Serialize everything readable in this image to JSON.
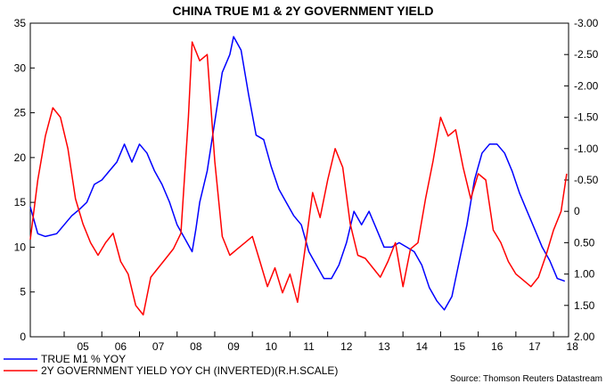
{
  "chart_data": {
    "type": "line",
    "title": "CHINA TRUE M1 & 2Y GOVERNMENT YIELD",
    "source": "Source: Thomson Reuters Datastream",
    "x_ticks": [
      "05",
      "06",
      "07",
      "08",
      "09",
      "10",
      "11",
      "12",
      "13",
      "14",
      "15",
      "16",
      "17",
      "18"
    ],
    "xlim": [
      2004.1,
      2018.4
    ],
    "left_axis": {
      "ylim": [
        0,
        35
      ],
      "ticks": [
        "0",
        "5",
        "10",
        "15",
        "20",
        "25",
        "30",
        "35"
      ]
    },
    "right_axis": {
      "ylim": [
        2.0,
        -3.0
      ],
      "inverted": true,
      "ticks": [
        "2.00",
        "1.50",
        "1.00",
        "0.50",
        "0",
        "-0.50",
        "-1.00",
        "-1.50",
        "-2.00",
        "-2.50",
        "-3.00"
      ]
    },
    "grid": false,
    "legend_position": "bottom-left",
    "series": [
      {
        "name": "TRUE M1 % YOY",
        "color": "#0000ff",
        "axis": "left",
        "x": [
          2004.1,
          2004.3,
          2004.5,
          2004.8,
          2005.0,
          2005.2,
          2005.4,
          2005.6,
          2005.8,
          2006.0,
          2006.2,
          2006.4,
          2006.6,
          2006.8,
          2007.0,
          2007.2,
          2007.4,
          2007.6,
          2007.8,
          2008.0,
          2008.2,
          2008.4,
          2008.5,
          2008.6,
          2008.8,
          2009.0,
          2009.2,
          2009.4,
          2009.5,
          2009.7,
          2009.9,
          2010.1,
          2010.3,
          2010.5,
          2010.7,
          2010.9,
          2011.1,
          2011.3,
          2011.5,
          2011.7,
          2011.9,
          2012.1,
          2012.3,
          2012.5,
          2012.7,
          2012.9,
          2013.1,
          2013.3,
          2013.5,
          2013.7,
          2013.9,
          2014.1,
          2014.3,
          2014.5,
          2014.7,
          2014.9,
          2015.1,
          2015.3,
          2015.5,
          2015.7,
          2015.9,
          2016.1,
          2016.3,
          2016.5,
          2016.7,
          2016.9,
          2017.1,
          2017.3,
          2017.5,
          2017.7,
          2017.9,
          2018.1,
          2018.3
        ],
        "values": [
          14.5,
          11.5,
          11.2,
          11.5,
          12.5,
          13.5,
          14.2,
          15.0,
          17.0,
          17.5,
          18.5,
          19.5,
          21.5,
          19.5,
          21.5,
          20.5,
          18.5,
          17.0,
          15.0,
          12.5,
          11.0,
          9.5,
          12.0,
          15.0,
          18.5,
          24.0,
          29.5,
          31.5,
          33.5,
          32.0,
          27.0,
          22.5,
          22.0,
          19.0,
          16.5,
          15.0,
          13.5,
          12.5,
          9.5,
          8.0,
          6.5,
          6.5,
          8.0,
          10.5,
          14.0,
          12.5,
          14.0,
          12.0,
          10.0,
          10.0,
          10.5,
          10.0,
          9.5,
          8.0,
          5.5,
          4.0,
          3.0,
          4.5,
          8.5,
          12.5,
          17.5,
          20.5,
          21.5,
          21.5,
          20.5,
          18.5,
          16.0,
          14.0,
          12.0,
          10.0,
          8.5,
          6.5,
          6.2
        ]
      },
      {
        "name": "2Y GOVERNMENT YIELD YOY CH (INVERTED)(R.H.SCALE)",
        "color": "#ff0000",
        "axis": "right",
        "x": [
          2004.1,
          2004.3,
          2004.5,
          2004.7,
          2004.9,
          2005.1,
          2005.3,
          2005.5,
          2005.7,
          2005.9,
          2006.1,
          2006.3,
          2006.5,
          2006.7,
          2006.9,
          2007.1,
          2007.3,
          2007.5,
          2007.7,
          2007.9,
          2008.1,
          2008.3,
          2008.4,
          2008.6,
          2008.8,
          2009.0,
          2009.2,
          2009.4,
          2009.6,
          2009.8,
          2010.0,
          2010.2,
          2010.4,
          2010.6,
          2010.8,
          2011.0,
          2011.2,
          2011.4,
          2011.6,
          2011.8,
          2012.0,
          2012.2,
          2012.4,
          2012.6,
          2012.8,
          2013.0,
          2013.2,
          2013.4,
          2013.6,
          2013.8,
          2014.0,
          2014.2,
          2014.4,
          2014.6,
          2014.8,
          2015.0,
          2015.2,
          2015.4,
          2015.6,
          2015.8,
          2016.0,
          2016.2,
          2016.4,
          2016.6,
          2016.8,
          2017.0,
          2017.2,
          2017.4,
          2017.6,
          2017.8,
          2018.0,
          2018.2,
          2018.35
        ],
        "values": [
          0.45,
          -0.5,
          -1.2,
          -1.65,
          -1.5,
          -1.0,
          -0.2,
          0.2,
          0.5,
          0.7,
          0.5,
          0.35,
          0.8,
          1.0,
          1.5,
          1.65,
          1.05,
          0.9,
          0.75,
          0.6,
          0.35,
          -1.5,
          -2.7,
          -2.4,
          -2.5,
          -0.8,
          0.4,
          0.7,
          0.6,
          0.5,
          0.4,
          0.8,
          1.2,
          0.9,
          1.3,
          1.0,
          1.45,
          0.6,
          -0.3,
          0.1,
          -0.5,
          -1.0,
          -0.7,
          0.2,
          0.7,
          0.75,
          0.9,
          1.05,
          0.8,
          0.5,
          1.2,
          0.6,
          0.5,
          -0.2,
          -0.8,
          -1.5,
          -1.2,
          -1.3,
          -0.7,
          -0.2,
          -0.6,
          -0.5,
          0.3,
          0.5,
          0.8,
          1.0,
          1.1,
          1.2,
          1.05,
          0.7,
          0.3,
          0.0,
          -0.6
        ]
      }
    ]
  }
}
